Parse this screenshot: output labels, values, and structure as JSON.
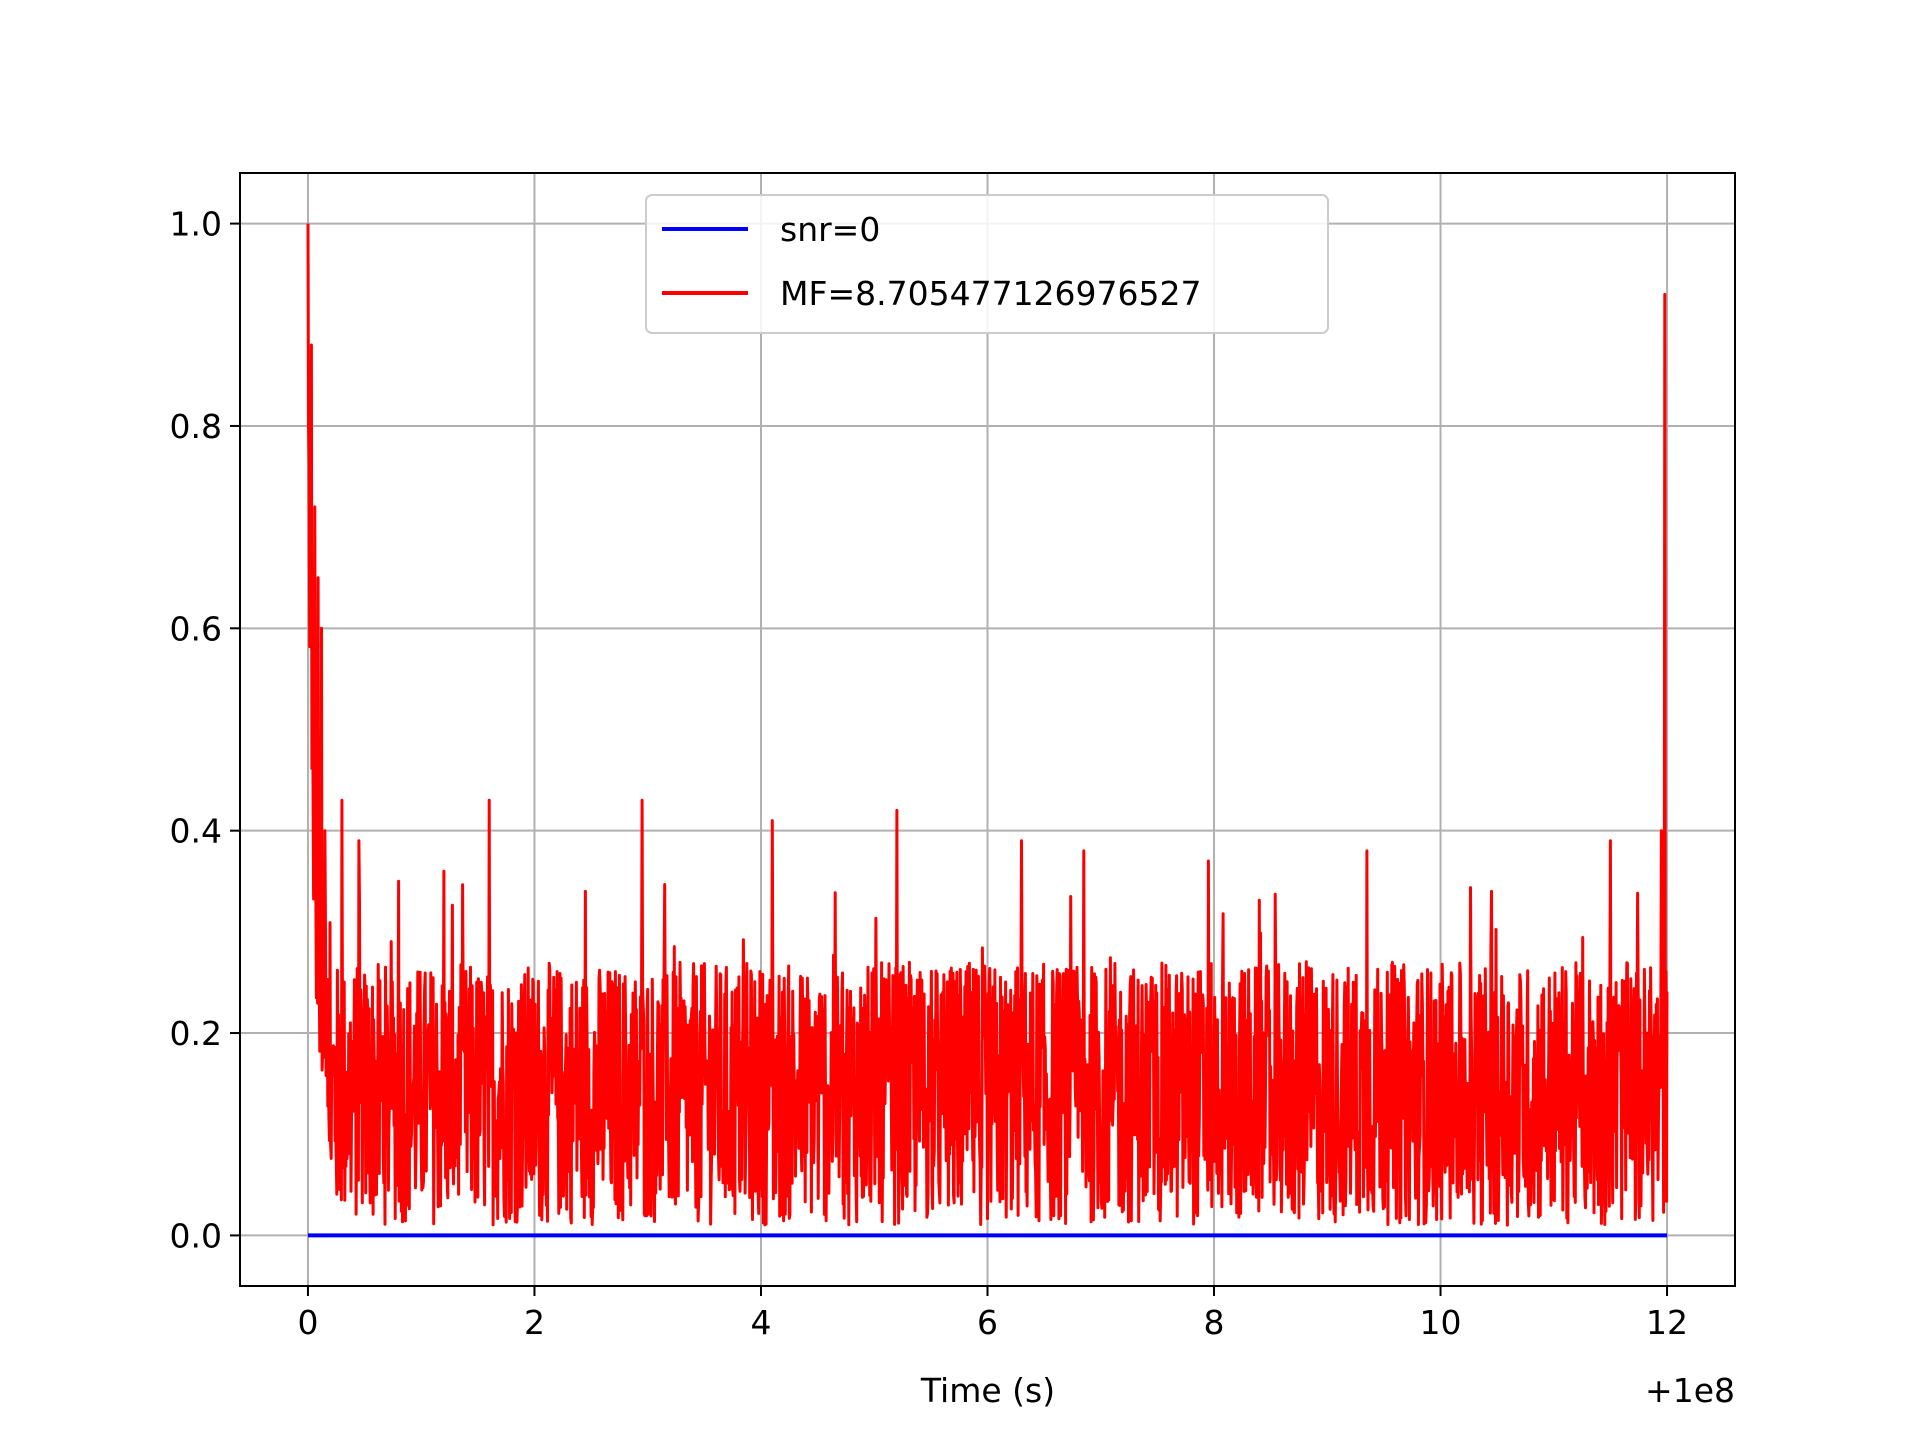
{
  "chart_data": {
    "type": "line",
    "title": "",
    "xlabel": "Time (s)",
    "ylabel": "",
    "x_offset_text": "+1e8",
    "x_unit_multiplier_note": "",
    "xlim": [
      -0.6,
      12.6
    ],
    "ylim": [
      -0.05,
      1.05
    ],
    "xticks": [
      0,
      2,
      4,
      6,
      8,
      10,
      12
    ],
    "yticks": [
      0.0,
      0.2,
      0.4,
      0.6,
      0.8,
      1.0
    ],
    "xtick_labels": [
      "0",
      "2",
      "4",
      "6",
      "8",
      "10",
      "12"
    ],
    "ytick_labels": [
      "0.0",
      "0.2",
      "0.4",
      "0.6",
      "0.8",
      "1.0"
    ],
    "grid": true,
    "legend_position": "top-center",
    "series": [
      {
        "name": "snr=0",
        "color": "#0000ff",
        "x": [
          0,
          12
        ],
        "y": [
          0,
          0
        ]
      },
      {
        "name": "MF=8.705477126976527",
        "color": "#ff0000",
        "peaks": {
          "x": [
            0.0,
            0.03,
            0.06,
            0.09,
            0.12,
            0.15,
            0.3,
            0.45,
            0.8,
            1.2,
            1.6,
            2.45,
            2.95,
            4.1,
            5.2,
            6.3,
            6.85,
            7.95,
            9.35,
            10.45,
            11.5,
            11.95,
            11.98
          ],
          "y": [
            1.0,
            0.88,
            0.72,
            0.65,
            0.6,
            0.4,
            0.43,
            0.39,
            0.35,
            0.36,
            0.43,
            0.34,
            0.43,
            0.41,
            0.42,
            0.39,
            0.38,
            0.37,
            0.38,
            0.34,
            0.39,
            0.4,
            0.93
          ]
        },
        "baseline_range": [
          0.0,
          0.3
        ],
        "samples": 2400
      }
    ]
  }
}
